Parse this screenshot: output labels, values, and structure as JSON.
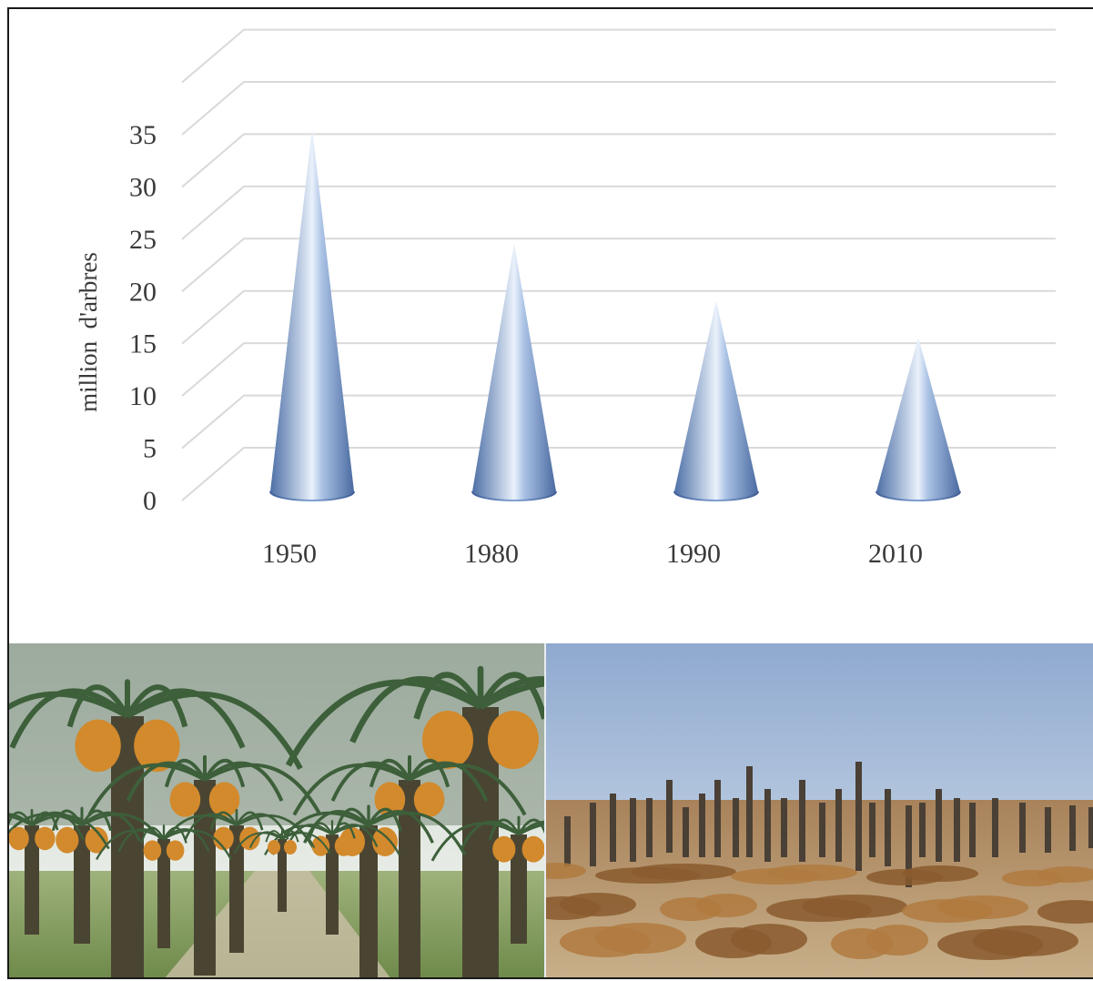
{
  "chart_data": {
    "type": "bar",
    "bar_shape": "cone",
    "categories": [
      "1950",
      "1980",
      "1990",
      "2010"
    ],
    "values": [
      33,
      22,
      16.5,
      13
    ],
    "ylabel": "million  d'arbres",
    "xlabel": "",
    "title": "",
    "ylim": [
      0,
      35
    ],
    "yticks": [
      "0",
      "5",
      "10",
      "15",
      "20",
      "25",
      "30",
      "35"
    ],
    "grid": true,
    "colors": {
      "cone": "#6f93c8",
      "cone_highlight": "#ffffff",
      "grid": "#d9d9d9",
      "text": "#3a3a3a"
    }
  },
  "photos": {
    "left": "date-palm-grove-with-fruit",
    "right": "dead-palm-trunks-field"
  }
}
